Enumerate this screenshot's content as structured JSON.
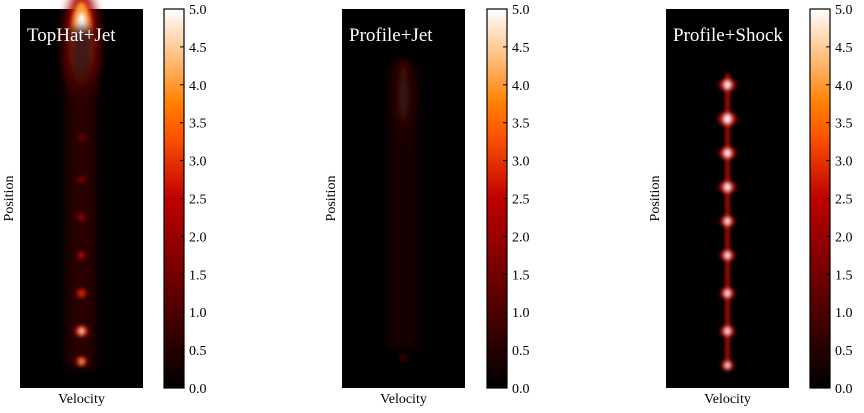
{
  "chart_data": [
    {
      "type": "heatmap",
      "title": "TopHat+Jet",
      "xlabel": "Velocity",
      "ylabel": "Position",
      "colorbar": {
        "ticks": [
          "0.0",
          "0.5",
          "1.0",
          "1.5",
          "2.0",
          "2.5",
          "3.0",
          "3.5",
          "4.0",
          "4.5",
          "5.0"
        ],
        "range": [
          0,
          5.0
        ],
        "colormap": "gist_heat"
      },
      "features": [
        {
          "kind": "plume",
          "y_center": 0.09,
          "intensity": 5.0,
          "width": 0.09,
          "height": 0.11
        },
        {
          "kind": "haze",
          "y_from": 0.05,
          "y_to": 0.95,
          "intensity": 0.6
        },
        {
          "kind": "knot",
          "y_center": 0.34,
          "intensity": 1.6,
          "width": 0.02
        },
        {
          "kind": "knot",
          "y_center": 0.45,
          "intensity": 1.8,
          "width": 0.02
        },
        {
          "kind": "knot",
          "y_center": 0.55,
          "intensity": 2.2,
          "width": 0.025
        },
        {
          "kind": "knot",
          "y_center": 0.65,
          "intensity": 2.6,
          "width": 0.025
        },
        {
          "kind": "knot",
          "y_center": 0.75,
          "intensity": 3.0,
          "width": 0.03
        },
        {
          "kind": "knot",
          "y_center": 0.85,
          "intensity": 4.5,
          "width": 0.035
        },
        {
          "kind": "knot",
          "y_center": 0.93,
          "intensity": 4.2,
          "width": 0.03
        }
      ]
    },
    {
      "type": "heatmap",
      "title": "Profile+Jet",
      "xlabel": "Velocity",
      "ylabel": "Position",
      "colorbar": {
        "ticks": [
          "0.0",
          "0.5",
          "1.0",
          "1.5",
          "2.0",
          "2.5",
          "3.0",
          "3.5",
          "4.0",
          "4.5",
          "5.0"
        ],
        "range": [
          0,
          5.0
        ],
        "colormap": "gist_heat"
      },
      "features": [
        {
          "kind": "plume",
          "y_center": 0.23,
          "intensity": 5.0,
          "width": 0.04,
          "height": 0.07
        },
        {
          "kind": "haze",
          "y_from": 0.15,
          "y_to": 0.9,
          "intensity": 0.35
        },
        {
          "kind": "knot",
          "y_center": 0.92,
          "intensity": 0.9,
          "width": 0.015
        }
      ]
    },
    {
      "type": "heatmap",
      "title": "Profile+Shock",
      "xlabel": "Velocity",
      "ylabel": "Position",
      "colorbar": {
        "ticks": [
          "0.0",
          "0.5",
          "1.0",
          "1.5",
          "2.0",
          "2.5",
          "3.0",
          "3.5",
          "4.0",
          "4.5",
          "5.0"
        ],
        "range": [
          0,
          5.0
        ],
        "colormap": "gist_heat"
      },
      "features": [
        {
          "kind": "spine",
          "y_from": 0.17,
          "y_to": 0.95,
          "intensity": 2.6
        },
        {
          "kind": "knot",
          "y_center": 0.2,
          "intensity": 5.0,
          "width": 0.04
        },
        {
          "kind": "knot",
          "y_center": 0.29,
          "intensity": 5.0,
          "width": 0.045
        },
        {
          "kind": "knot",
          "y_center": 0.38,
          "intensity": 5.0,
          "width": 0.04
        },
        {
          "kind": "knot",
          "y_center": 0.47,
          "intensity": 5.0,
          "width": 0.04
        },
        {
          "kind": "knot",
          "y_center": 0.56,
          "intensity": 5.0,
          "width": 0.035
        },
        {
          "kind": "knot",
          "y_center": 0.65,
          "intensity": 5.0,
          "width": 0.035
        },
        {
          "kind": "knot",
          "y_center": 0.75,
          "intensity": 5.0,
          "width": 0.035
        },
        {
          "kind": "knot",
          "y_center": 0.85,
          "intensity": 5.0,
          "width": 0.035
        },
        {
          "kind": "knot",
          "y_center": 0.94,
          "intensity": 5.0,
          "width": 0.03
        }
      ]
    }
  ]
}
